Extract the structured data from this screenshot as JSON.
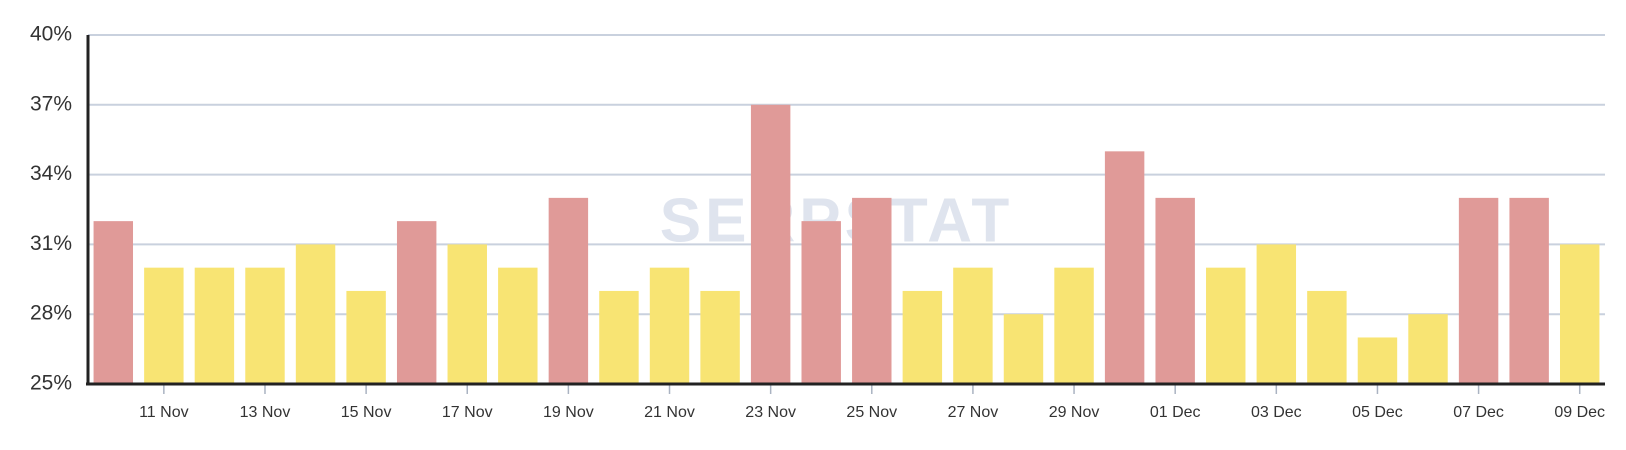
{
  "chart_data": {
    "type": "bar",
    "watermark": "SERPSTAT",
    "categories": [
      null,
      "11 Nov",
      null,
      "13 Nov",
      null,
      "15 Nov",
      null,
      "17 Nov",
      null,
      "19 Nov",
      null,
      "21 Nov",
      null,
      "23 Nov",
      null,
      "25 Nov",
      null,
      "27 Nov",
      null,
      "29 Nov",
      null,
      "01 Dec",
      null,
      "03 Dec",
      null,
      "05 Dec",
      null,
      "07 Dec",
      null,
      "09 Dec"
    ],
    "values": [
      32,
      30,
      30,
      30,
      31,
      29,
      32,
      31,
      30,
      33,
      29,
      30,
      29,
      37,
      32,
      33,
      29,
      30,
      28,
      30,
      35,
      33,
      30,
      31,
      29,
      27,
      28,
      33,
      33,
      31
    ],
    "colors": [
      "#e09a98",
      "#f8e473",
      "#f8e473",
      "#f8e473",
      "#f8e473",
      "#f8e473",
      "#e09a98",
      "#f8e473",
      "#f8e473",
      "#e09a98",
      "#f8e473",
      "#f8e473",
      "#f8e473",
      "#e09a98",
      "#e09a98",
      "#e09a98",
      "#f8e473",
      "#f8e473",
      "#f8e473",
      "#f8e473",
      "#e09a98",
      "#e09a98",
      "#f8e473",
      "#f8e473",
      "#f8e473",
      "#f8e473",
      "#f8e473",
      "#e09a98",
      "#e09a98",
      "#f8e473"
    ],
    "ylim": [
      25,
      40
    ],
    "yticks": [
      {
        "value": 25,
        "label": "25%"
      },
      {
        "value": 28,
        "label": "28%"
      },
      {
        "value": 31,
        "label": "31%"
      },
      {
        "value": 34,
        "label": "34%"
      },
      {
        "value": 37,
        "label": "37%"
      },
      {
        "value": 40,
        "label": "40%"
      }
    ],
    "grid": true
  }
}
